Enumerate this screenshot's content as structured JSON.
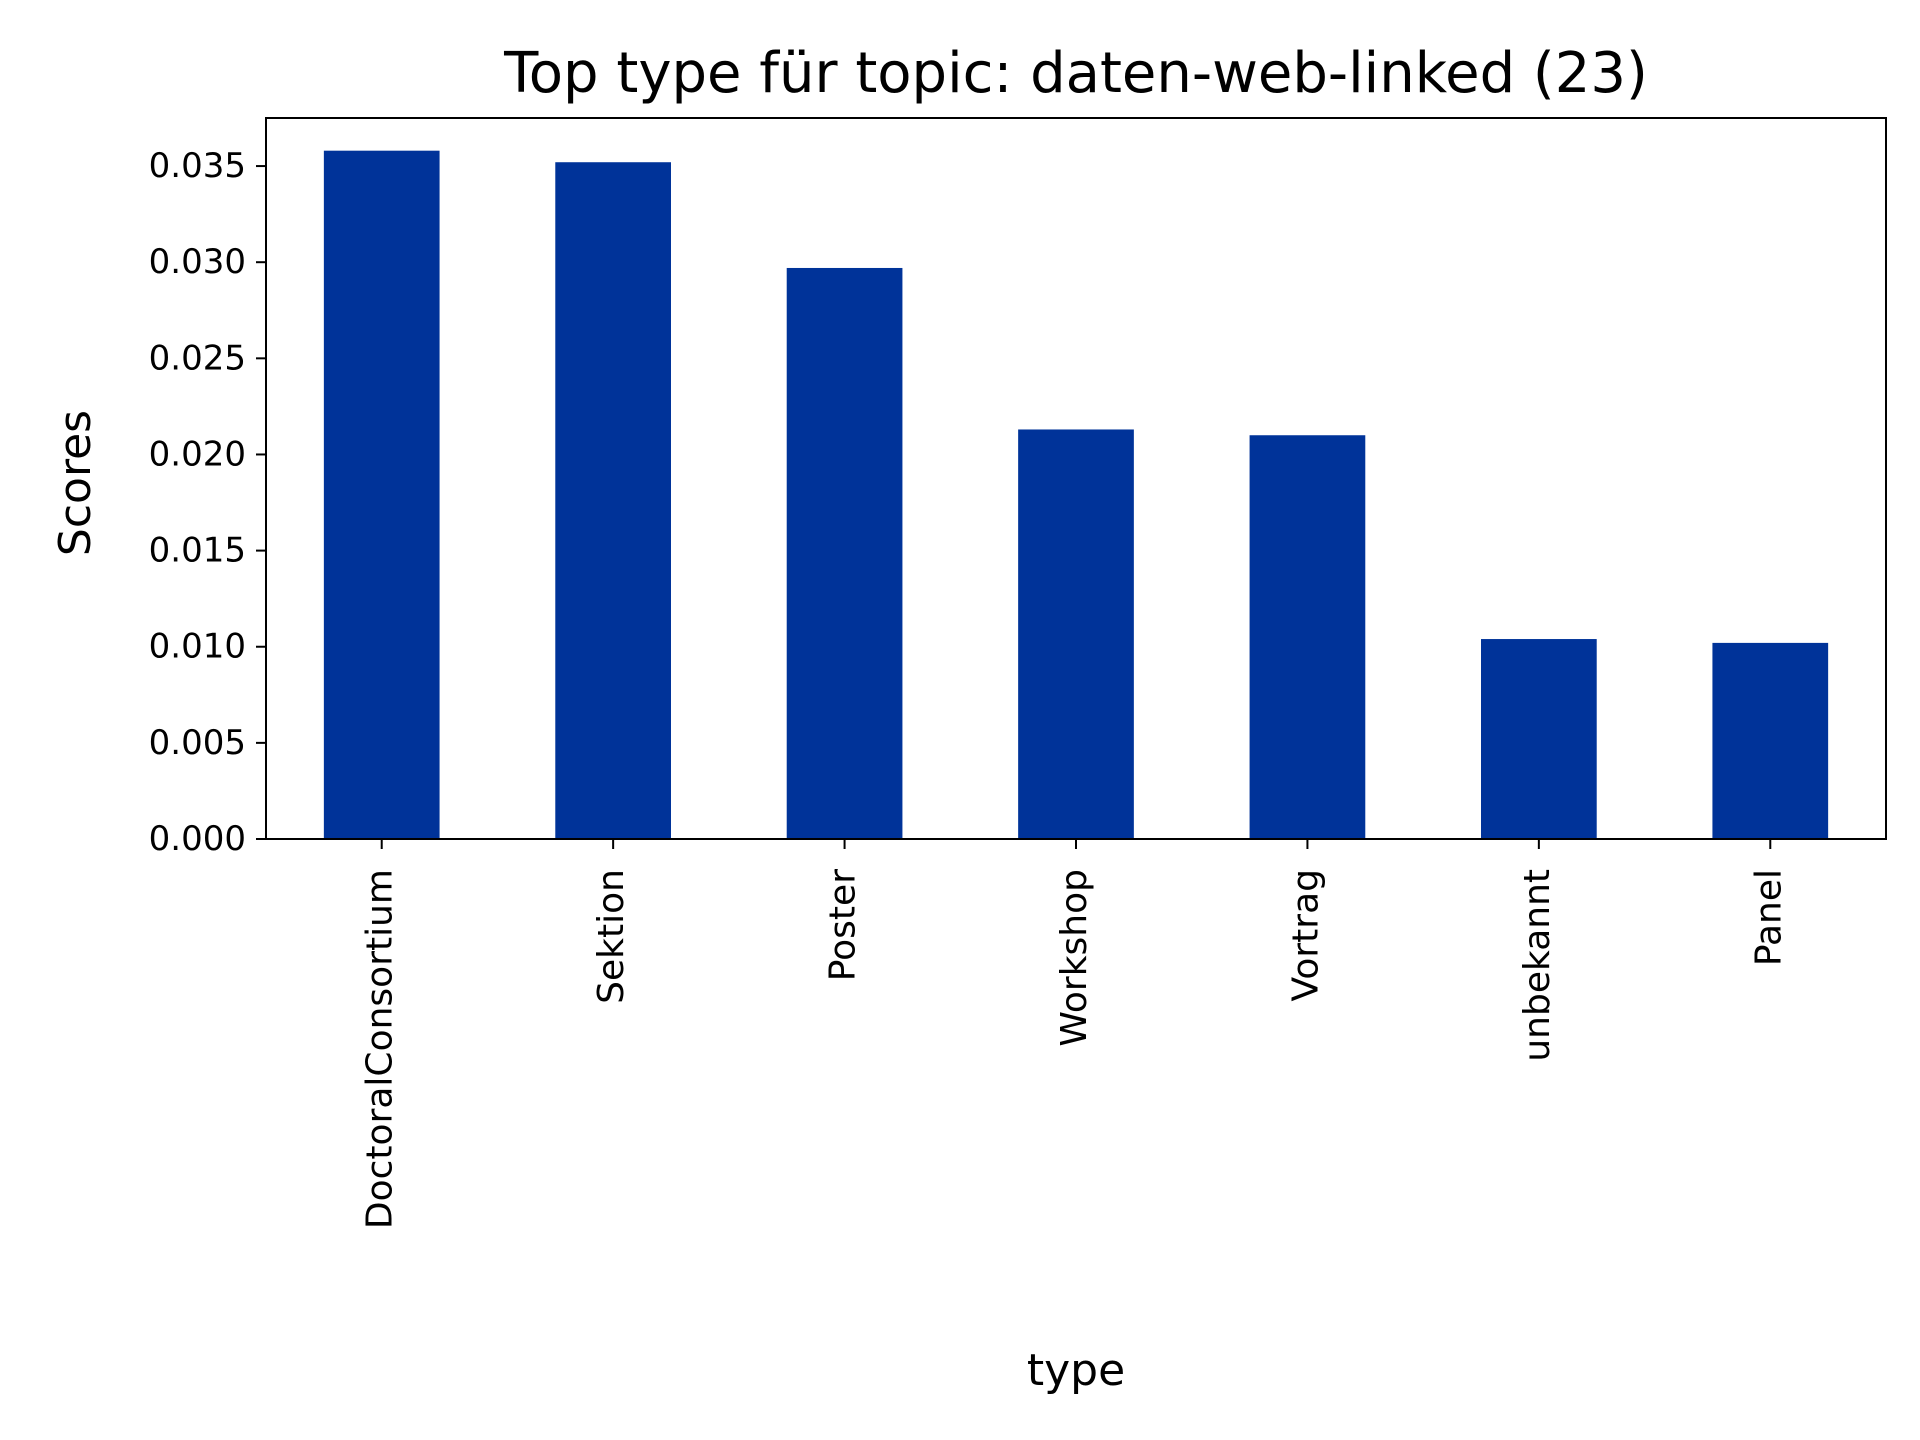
{
  "chart_data": {
    "type": "bar",
    "title": "Top type für topic: daten-web-linked (23)",
    "xlabel": "type",
    "ylabel": "Scores",
    "categories": [
      "DoctoralConsortium",
      "Sektion",
      "Poster",
      "Workshop",
      "Vortrag",
      "unbekannt",
      "Panel"
    ],
    "values": [
      0.0358,
      0.0352,
      0.0297,
      0.0213,
      0.021,
      0.0104,
      0.0102
    ],
    "ylim": [
      0,
      0.0375
    ],
    "yticks": [
      "0.000",
      "0.005",
      "0.010",
      "0.015",
      "0.020",
      "0.025",
      "0.030",
      "0.035"
    ],
    "bar_color": "#003399",
    "grid": false,
    "legend": "none"
  }
}
